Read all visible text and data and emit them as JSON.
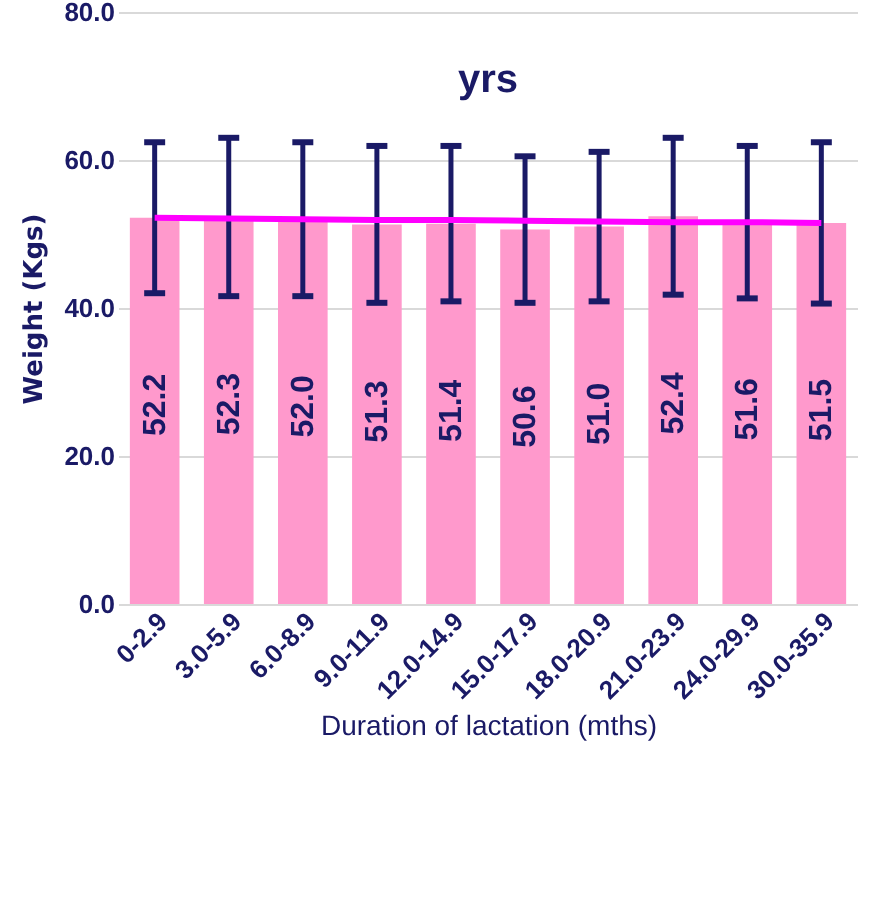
{
  "chart_data": {
    "type": "bar",
    "title": "yrs",
    "xlabel": "Duration of lactation (mths)",
    "ylabel": "Weight (Kgs)",
    "categories": [
      "0-2.9",
      "3.0-5.9",
      "6.0-8.9",
      "9.0-11.9",
      "12.0-14.9",
      "15.0-17.9",
      "18.0-20.9",
      "21.0-23.9",
      "24.0-29.9",
      "30.0-35.9"
    ],
    "series": [
      {
        "color": "#ff99cc",
        "values": [
          52.2,
          52.3,
          52.0,
          51.3,
          51.4,
          50.6,
          51.0,
          52.4,
          51.6,
          51.5
        ],
        "errors": [
          10.2,
          10.7,
          10.4,
          10.6,
          10.5,
          9.9,
          10.1,
          10.6,
          10.3,
          10.9
        ],
        "value_labels": [
          "52.2",
          "52.3",
          "52.0",
          "51.3",
          "51.4",
          "50.6",
          "51.0",
          "52.4",
          "51.6",
          "51.5"
        ]
      },
      {
        "type": "line",
        "color": "#ff00ff",
        "values": [
          52.2,
          52.1,
          52.0,
          51.9,
          51.9,
          51.8,
          51.7,
          51.6,
          51.6,
          51.5
        ]
      }
    ],
    "ylim": [
      0,
      80
    ],
    "yticks": [
      {
        "value": 0,
        "label": "0.0"
      },
      {
        "value": 20,
        "label": "20.0"
      },
      {
        "value": 40,
        "label": "40.0"
      },
      {
        "value": 60,
        "label": "60.0"
      },
      {
        "value": 80,
        "label": "80.0"
      }
    ],
    "grid": "y",
    "marker": "none",
    "line_style": "solid"
  }
}
